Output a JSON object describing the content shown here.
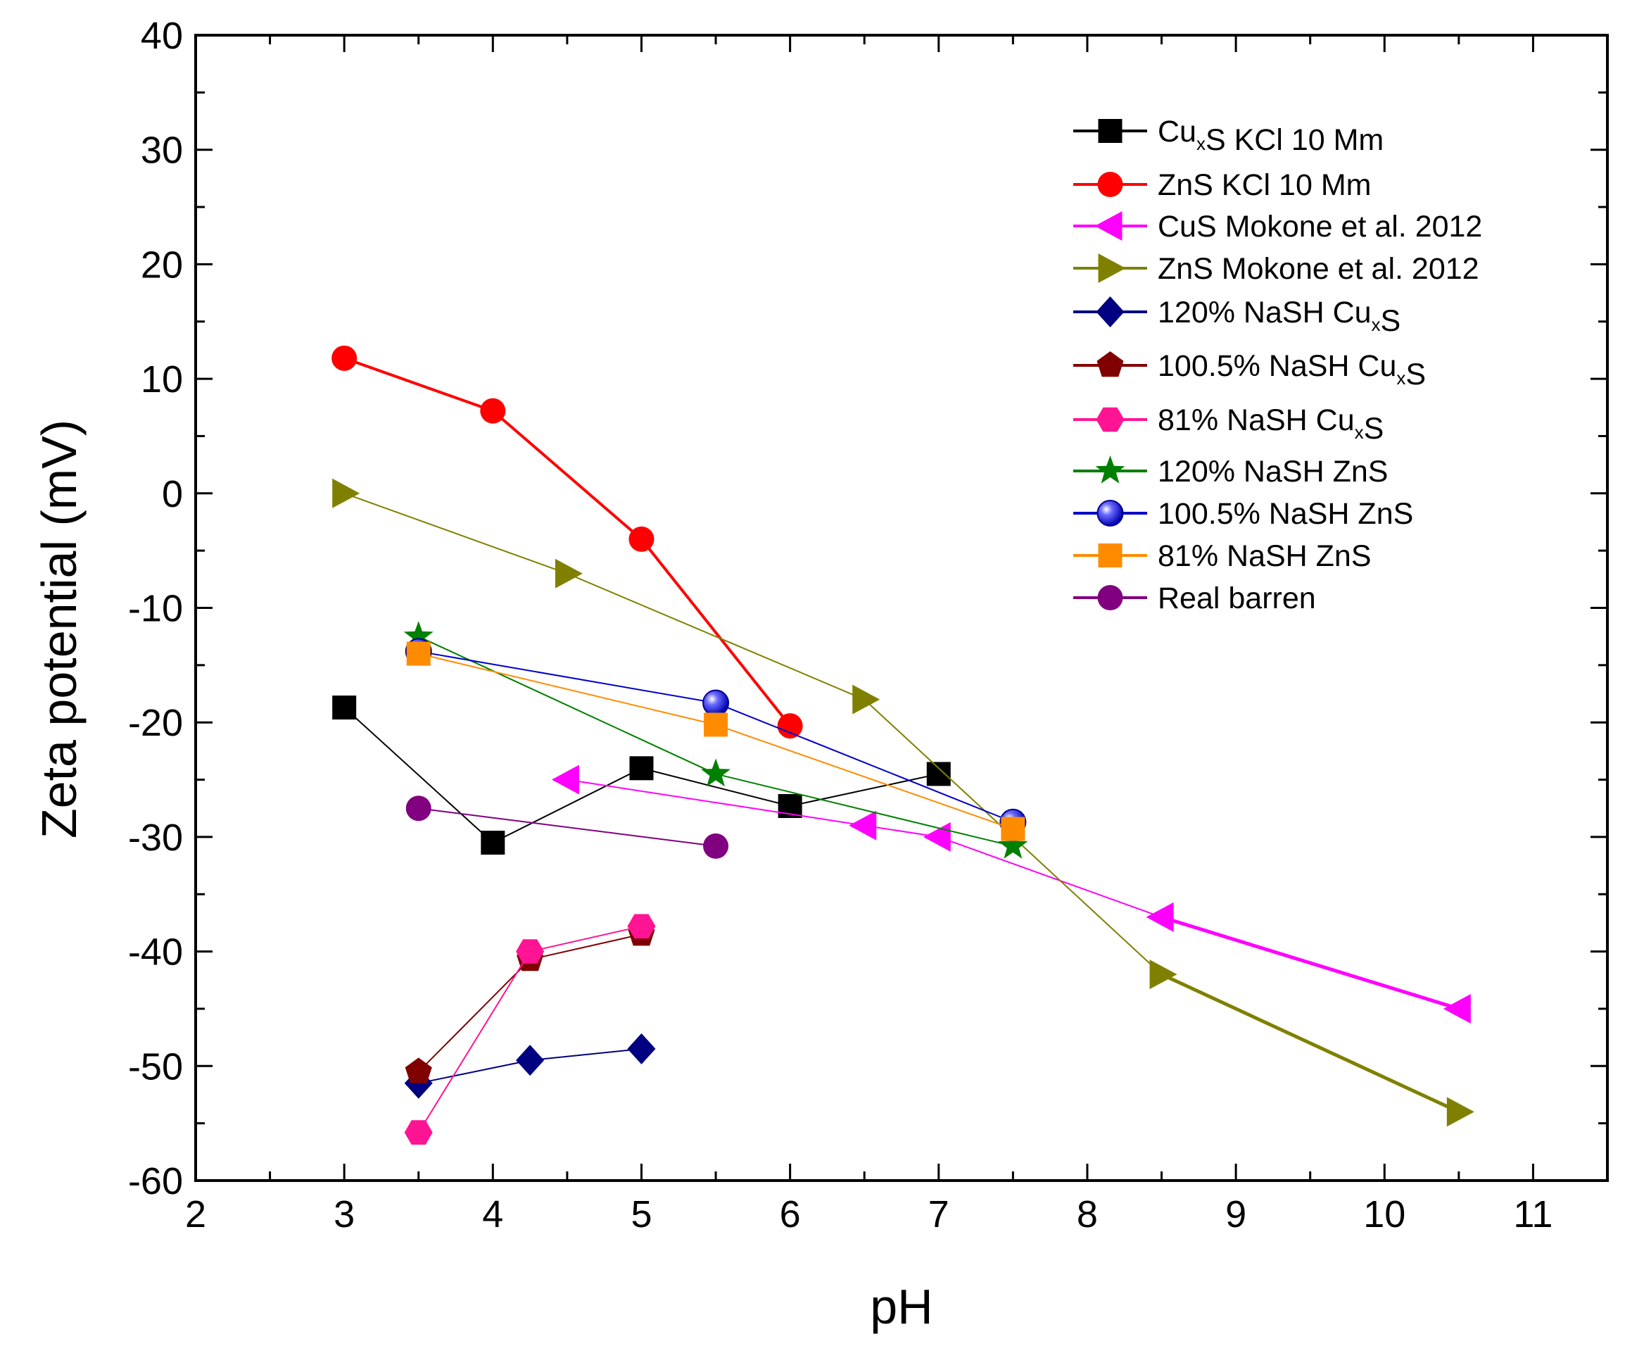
{
  "chart_data": {
    "type": "scatter",
    "xlabel": "pH",
    "ylabel": "Zeta potential (mV)",
    "xlim": [
      2,
      11.5
    ],
    "ylim": [
      -60,
      40
    ],
    "x_ticks": [
      2,
      3,
      4,
      5,
      6,
      7,
      8,
      9,
      10,
      11
    ],
    "y_ticks": [
      -60,
      -50,
      -40,
      -30,
      -20,
      -10,
      0,
      10,
      20,
      30,
      40
    ],
    "legend_position": "top-right",
    "grid": false,
    "series": [
      {
        "name": "CuxS KCl 10 Mm",
        "name_parts": [
          {
            "t": "Cu"
          },
          {
            "t": "x",
            "sub": true
          },
          {
            "t": "S KCl 10 Mm"
          }
        ],
        "marker": "square",
        "color": "#000000",
        "line_width": 2,
        "x": [
          3,
          4,
          5,
          6,
          7
        ],
        "y": [
          -18.7,
          -30.5,
          -24.0,
          -27.3,
          -24.5
        ]
      },
      {
        "name": "ZnS KCl 10 Mm",
        "name_parts": [
          {
            "t": "ZnS KCl 10 Mm"
          }
        ],
        "marker": "circle",
        "color": "#ff0000",
        "line_width": 4,
        "x": [
          3,
          4,
          5,
          6
        ],
        "y": [
          11.8,
          7.2,
          -4.0,
          -20.3
        ]
      },
      {
        "name": "CuS Mokone et al. 2012",
        "name_parts": [
          {
            "t": "CuS Mokone et al. 2012"
          }
        ],
        "marker": "triangle-left",
        "color": "#ff00ff",
        "line_width": 2,
        "x": [
          4.5,
          6.5,
          7,
          8.5,
          10.5
        ],
        "y": [
          -25.0,
          -29.0,
          -30.0,
          -37.0,
          -45.0
        ],
        "segment_widths": [
          2,
          2,
          2,
          5
        ]
      },
      {
        "name": "ZnS Mokone et al. 2012",
        "name_parts": [
          {
            "t": "ZnS Mokone et al. 2012"
          }
        ],
        "marker": "triangle-right",
        "color": "#808000",
        "line_width": 2,
        "x": [
          3,
          4.5,
          6.5,
          8.5,
          10.5
        ],
        "y": [
          0.0,
          -7.0,
          -18.0,
          -42.0,
          -54.0
        ],
        "segment_widths": [
          2,
          2,
          2,
          5
        ]
      },
      {
        "name": "120% NaSH CuxS",
        "name_parts": [
          {
            "t": "120% NaSH Cu"
          },
          {
            "t": "x",
            "sub": true
          },
          {
            "t": "S"
          }
        ],
        "marker": "diamond",
        "color": "#000080",
        "line_width": 2,
        "x": [
          3.5,
          4.25,
          5
        ],
        "y": [
          -51.5,
          -49.5,
          -48.5
        ]
      },
      {
        "name": "100.5% NaSH CuxS",
        "name_parts": [
          {
            "t": "100.5% NaSH Cu"
          },
          {
            "t": "x",
            "sub": true
          },
          {
            "t": "S"
          }
        ],
        "marker": "pentagon",
        "color": "#800000",
        "line_width": 2,
        "x": [
          3.5,
          4.25,
          5
        ],
        "y": [
          -50.5,
          -40.7,
          -38.5
        ]
      },
      {
        "name": "81% NaSH CuxS",
        "name_parts": [
          {
            "t": "81% NaSH Cu"
          },
          {
            "t": "x",
            "sub": true
          },
          {
            "t": "S"
          }
        ],
        "marker": "hexagon",
        "color": "#ff1493",
        "line_width": 2,
        "x": [
          3.5,
          4.25,
          5
        ],
        "y": [
          -55.8,
          -40.0,
          -37.8
        ]
      },
      {
        "name": "120% NaSH ZnS",
        "name_parts": [
          {
            "t": "120% NaSH ZnS"
          }
        ],
        "marker": "star",
        "color": "#008000",
        "line_width": 2,
        "x": [
          3.5,
          5.5,
          7.5
        ],
        "y": [
          -12.5,
          -24.5,
          -30.8
        ]
      },
      {
        "name": "100.5% NaSH ZnS",
        "name_parts": [
          {
            "t": "100.5% NaSH ZnS"
          }
        ],
        "marker": "sphere",
        "color": "#0000cc",
        "line_width": 2,
        "x": [
          3.5,
          5.5,
          7.5
        ],
        "y": [
          -13.8,
          -18.3,
          -28.7
        ]
      },
      {
        "name": "81% NaSH ZnS",
        "name_parts": [
          {
            "t": "81% NaSH ZnS"
          }
        ],
        "marker": "square",
        "color": "#ff8c00",
        "line_width": 2,
        "x": [
          3.5,
          5.5,
          7.5
        ],
        "y": [
          -14.0,
          -20.2,
          -29.3
        ]
      },
      {
        "name": "Real barren",
        "name_parts": [
          {
            "t": "Real barren"
          }
        ],
        "marker": "circle",
        "color": "#800080",
        "line_width": 2,
        "x": [
          3.5,
          5.5
        ],
        "y": [
          -27.5,
          -30.8
        ]
      }
    ]
  }
}
